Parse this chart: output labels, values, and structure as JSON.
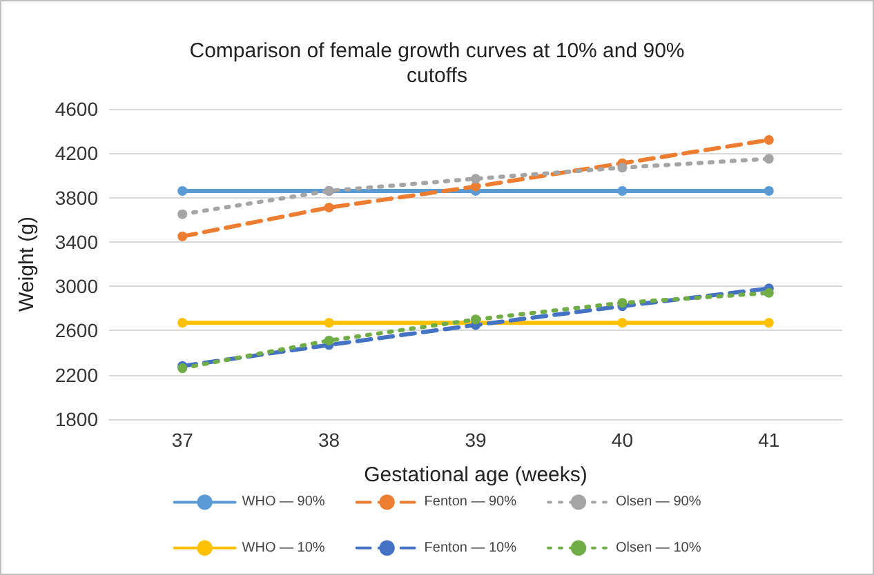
{
  "chart_data": {
    "type": "line",
    "title": "Comparison of female growth curves at 10% and 90%\ncutoffs",
    "xlabel": "Gestational age (weeks)",
    "ylabel": "Weight (g)",
    "categories": [
      "37",
      "38",
      "39",
      "40",
      "41"
    ],
    "series": [
      {
        "name": "WHO — 90%",
        "color": "#5b9bd5",
        "line_style": "solid",
        "values": [
          3860,
          3860,
          3860,
          3860,
          3860
        ]
      },
      {
        "name": "Fenton — 90%",
        "color": "#ed7d31",
        "line_style": "dashed",
        "values": [
          3450,
          3710,
          3900,
          4110,
          4320
        ]
      },
      {
        "name": "Olsen — 90%",
        "color": "#a5a5a5",
        "line_style": "dotted",
        "values": [
          3650,
          3860,
          3970,
          4070,
          4150
        ]
      },
      {
        "name": "WHO — 10%",
        "color": "#ffc000",
        "line_style": "solid",
        "values": [
          2670,
          2670,
          2670,
          2670,
          2670
        ]
      },
      {
        "name": "Fenton — 10%",
        "color": "#4472c4",
        "line_style": "dashed",
        "values": [
          2280,
          2470,
          2650,
          2820,
          2980
        ]
      },
      {
        "name": "Olsen — 10%",
        "color": "#70ad47",
        "line_style": "dotted",
        "values": [
          2260,
          2510,
          2700,
          2850,
          2940
        ]
      }
    ],
    "ylim": [
      1800,
      4600
    ],
    "yticks": [
      1800,
      2200,
      2600,
      3000,
      3400,
      3800,
      4200,
      4600
    ],
    "grid": "y",
    "legend": "bottom",
    "marker": "circle"
  }
}
